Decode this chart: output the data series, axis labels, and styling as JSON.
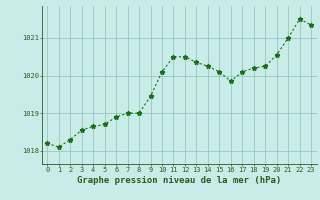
{
  "x": [
    0,
    1,
    2,
    3,
    4,
    5,
    6,
    7,
    8,
    9,
    10,
    11,
    12,
    13,
    14,
    15,
    16,
    17,
    18,
    19,
    20,
    21,
    22,
    23
  ],
  "y": [
    1018.2,
    1018.1,
    1018.3,
    1018.55,
    1018.65,
    1018.7,
    1018.9,
    1019.0,
    1019.0,
    1019.45,
    1020.1,
    1020.5,
    1020.5,
    1020.35,
    1020.25,
    1020.1,
    1019.85,
    1020.1,
    1020.2,
    1020.25,
    1020.55,
    1021.0,
    1021.5,
    1021.35
  ],
  "line_color": "#1a6e1a",
  "marker": "*",
  "background_color": "#c8ede8",
  "grid_color": "#8fbfba",
  "axis_color": "#2d5a1e",
  "xlabel": "Graphe pression niveau de la mer (hPa)",
  "xlabel_fontsize": 6.5,
  "yticks": [
    1018,
    1019,
    1020,
    1021
  ],
  "xtick_labels": [
    "0",
    "1",
    "2",
    "3",
    "4",
    "5",
    "6",
    "7",
    "8",
    "9",
    "10",
    "11",
    "12",
    "13",
    "14",
    "15",
    "16",
    "17",
    "18",
    "19",
    "20",
    "21",
    "22",
    "23"
  ],
  "ylim": [
    1017.65,
    1021.85
  ],
  "xlim": [
    -0.5,
    23.5
  ],
  "tick_fontsize": 5.0,
  "line_width": 0.8,
  "marker_size": 3.5
}
